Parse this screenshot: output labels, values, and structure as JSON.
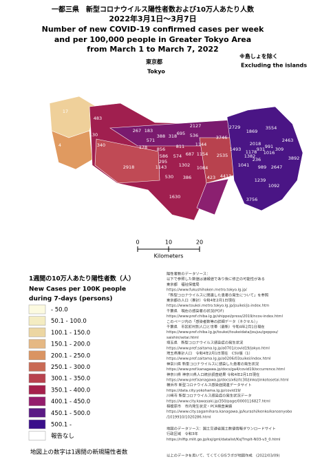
{
  "header": {
    "lines": [
      "一都三県　新型コロナウイルス陽性者数および10万人あたり人数",
      "2022年3月1日～3月7日",
      "Number of new COVID-19 confirmed cases per week",
      "and per 100,000 people in Greater Tokyo Area",
      "from March 1 to March 7, 2022"
    ],
    "note": [
      "※島しょを除く",
      "Excluding the islands"
    ],
    "region": [
      "東京都",
      "Tokyo"
    ]
  },
  "map": {
    "labels": [
      17,
      483,
      130,
      267,
      183,
      388,
      318,
      695,
      536,
      2127,
      2729,
      1869,
      3554,
      4,
      340,
      178,
      571,
      856,
      811,
      1144,
      3746,
      2018,
      991,
      2463,
      586,
      574,
      687,
      1154,
      1493,
      1178,
      931,
      309,
      1016,
      2918,
      295,
      1143,
      1302,
      1084,
      2535,
      1382,
      1041,
      236,
      2647,
      3892,
      989,
      530,
      386,
      423,
      4413,
      1239,
      1092,
      1630,
      3756
    ]
  },
  "scale": {
    "ticks": [
      0,
      10,
      20
    ],
    "unit": "Kilometers"
  },
  "legend": {
    "title": [
      "1週間の10万人あたり陽性者数（人）",
      "New Cases per 100K people",
      "during 7-days (persons)"
    ],
    "items": [
      {
        "label": "- 50.0",
        "color": "#fcfae0"
      },
      {
        "label": "50.1 - 100.0",
        "color": "#f4ecc2"
      },
      {
        "label": "100.1 - 150.0",
        "color": "#ecd6a2"
      },
      {
        "label": "150.1 - 200.0",
        "color": "#e5b883"
      },
      {
        "label": "200.1 - 250.0",
        "color": "#da9462"
      },
      {
        "label": "250.1 - 300.0",
        "color": "#c96a55"
      },
      {
        "label": "300.1 - 350.0",
        "color": "#b8424e"
      },
      {
        "label": "350.1 - 400.0",
        "color": "#a5204c"
      },
      {
        "label": "400.1 - 450.0",
        "color": "#941d6c"
      },
      {
        "label": "450.1 - 500.0",
        "color": "#5b1a84"
      },
      {
        "label": "500.1 -",
        "color": "#3a0f8a"
      },
      {
        "label": "報告なし",
        "color": "#ffffff"
      }
    ],
    "footer": "地図上の数字は1週間の新規陽性者数"
  },
  "sources": {
    "case_lines": [
      "陽性者数のデータソース：",
      "以下で参照した数値は速報値であり後に修正の可能性がある",
      "東京都　福祉保健局",
      "https://www.fukushihoken.metro.tokyo.lg.jp/",
      "「新型コロナウイルスに関連した患者の発生について」を参照",
      "東京都の人口（推計）令和4年2月1日現在",
      "https://www.toukei.metro.tokyo.lg.jp/jsuikei/js-index.htm",
      "千葉県　現在の感染者の状況(PDF)",
      "https://www.pref.chiba.lg.jp/shippei/press/2019/ncov-index.html",
      "このページ内の「感染者数等の詳細データ（ネクセル）」",
      "千葉県　市区町村別人口と世帯（最新）令和4年2月1日現在",
      "https://www.pref.chiba.lg.jp/toukei/toukeidata/joujuu/geppou/",
      "saishin/setai.html",
      "埼玉県　新型コロナウイルス感染症の発生状況",
      "https://www.pref.saitama.lg.jp/a0701/covid19/jokyo.html",
      "埼玉県推計人口　令和4年2月1日現在　CSV版（1）",
      "https://www.pref.saitama.lg.jp/a0206/03suikei/index.html",
      "神奈川県 新型コロナウイルスに感染した患者の発生状況",
      "https://www.pref.kanagawa.jp/docs/ga4/covid19/occurrence.html",
      "神奈川県 神奈川県人口統計調査結果 令和4年2月1日現在",
      "https://www.pref.kanagawa.jp/docs/x6z/tc30/jinko/jinkotosetai.html",
      "横浜市 新型コロナウイルス感染症関連データサイト",
      "https://data.city.yokohama.lg.jp/covid19/",
      "川崎市 新型コロナウイルス感染症の発生状況データ",
      "https://www.city.kawasaki.jp/350/page/0000116827.html",
      "相模原市　市内発生状況・PCR検査実績",
      "https://www.city.sagamihara.kanagawa.jp/kurashi/kenko/kansenyobo",
      "/1019910/1020286.html"
    ],
    "map_lines": [
      "地図のデータソース：国土交通省国土数値情報ダウンロードサイト",
      "行政区域　令和3年",
      "https://nlftp.mlit.go.jp/ksj/gml/datalist/KsjTmplt-N03-v3_0.html"
    ],
    "credit": "以上のデータを用いて、てくてくGISラボが地図作成　(2022/03/09)"
  }
}
